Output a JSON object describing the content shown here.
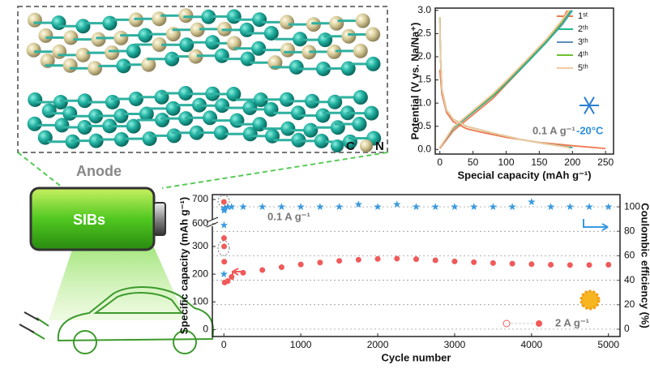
{
  "illustration": {
    "anode": "Anode",
    "battery": "SIBs",
    "atoms": [
      "C",
      "N"
    ]
  },
  "chart_data": [
    {
      "type": "line",
      "x_label": "Special capacity (mAh g⁻¹)",
      "y_label": "Potential (V vs. Na/Na⁺)",
      "annotations": [
        "0.1 A g⁻¹",
        "-20°C"
      ],
      "xlim": [
        -7,
        262
      ],
      "xticks": [
        0,
        50,
        100,
        150,
        200,
        250
      ],
      "ylim": [
        -0.1,
        3.05
      ],
      "yticks": [
        {
          "value": 0,
          "label": "0.0"
        },
        0.5,
        {
          "value": 1,
          "label": "1.0"
        },
        1.5,
        {
          "value": 2,
          "label": "2.0"
        },
        2.5,
        {
          "value": 3,
          "label": "3.0"
        }
      ],
      "series": [
        {
          "name": "1ˢᵗ",
          "color": "#f07850",
          "x": [
            0,
            3,
            10,
            20,
            40,
            60,
            100,
            150,
            200,
            250,
            null,
            0,
            20,
            50,
            80,
            100,
            130,
            160,
            180,
            192
          ],
          "values": [
            1.72,
            1.2,
            0.8,
            0.6,
            0.45,
            0.38,
            0.26,
            0.15,
            0.08,
            0.02,
            null,
            0.02,
            0.4,
            0.75,
            1.1,
            1.4,
            1.85,
            2.3,
            2.65,
            3.0
          ]
        },
        {
          "name": "2ᵗʰ",
          "color": "#20b890",
          "x": [
            0,
            1,
            3,
            10,
            20,
            40,
            80,
            120,
            160,
            200,
            null,
            0,
            20,
            50,
            80,
            100,
            130,
            160,
            185,
            200
          ],
          "values": [
            2.85,
            2.0,
            1.3,
            0.85,
            0.65,
            0.5,
            0.35,
            0.22,
            0.12,
            0.04,
            null,
            0.04,
            0.45,
            0.8,
            1.15,
            1.42,
            1.85,
            2.3,
            2.7,
            3.0
          ]
        },
        {
          "name": "3ᵗʰ",
          "color": "#5a90b8",
          "x": [
            0,
            1,
            3,
            10,
            20,
            40,
            80,
            120,
            160,
            198,
            null,
            0,
            20,
            50,
            80,
            100,
            130,
            160,
            185,
            198
          ],
          "values": [
            2.85,
            2.0,
            1.3,
            0.85,
            0.65,
            0.5,
            0.35,
            0.22,
            0.12,
            0.04,
            null,
            0.04,
            0.46,
            0.82,
            1.17,
            1.44,
            1.88,
            2.33,
            2.72,
            3.0
          ]
        },
        {
          "name": "4ᵗʰ",
          "color": "#70c030",
          "x": [
            0,
            1,
            3,
            10,
            20,
            40,
            80,
            120,
            160,
            196,
            null,
            0,
            20,
            50,
            80,
            100,
            130,
            160,
            183,
            196
          ],
          "values": [
            2.85,
            2.0,
            1.3,
            0.85,
            0.65,
            0.5,
            0.35,
            0.22,
            0.12,
            0.04,
            null,
            0.04,
            0.47,
            0.83,
            1.18,
            1.46,
            1.9,
            2.35,
            2.73,
            3.0
          ]
        },
        {
          "name": "5ᵗʰ",
          "color": "#f5c8a0",
          "x": [
            0,
            1,
            3,
            10,
            20,
            40,
            80,
            120,
            160,
            195,
            null,
            0,
            20,
            50,
            80,
            100,
            130,
            160,
            182,
            195
          ],
          "values": [
            2.85,
            2.0,
            1.3,
            0.85,
            0.65,
            0.5,
            0.35,
            0.22,
            0.12,
            0.04,
            null,
            0.04,
            0.48,
            0.84,
            1.2,
            1.48,
            1.92,
            2.37,
            2.75,
            3.0
          ]
        }
      ]
    },
    {
      "type": "scatter",
      "x_label": "Cycle number",
      "y_label": "Specific capacity (mAh g⁻¹)",
      "y2_label": "Coulombic efficiency (%)",
      "annotations": [
        "0.1 A g⁻¹"
      ],
      "xlim": [
        -150,
        5150
      ],
      "xticks": [
        0,
        1000,
        2000,
        3000,
        4000,
        5000
      ],
      "ylim": [
        -25,
        720
      ],
      "y_break": [
        370,
        620
      ],
      "yticks": [
        0,
        100,
        200,
        300,
        600,
        700
      ],
      "y2lim": [
        -6,
        110
      ],
      "y2ticks": [
        0,
        20,
        40,
        60,
        80,
        100
      ],
      "series": [
        {
          "name": "2 A g⁻¹",
          "color": "#f05a5a",
          "x": [
            1,
            2,
            3,
            5,
            10,
            50,
            100,
            250,
            500,
            750,
            1000,
            1250,
            1500,
            1750,
            2000,
            2250,
            2500,
            2750,
            3000,
            3250,
            3500,
            3750,
            4000,
            4250,
            4500,
            4750,
            5000
          ],
          "values": [
            690,
            330,
            300,
            245,
            170,
            175,
            190,
            205,
            215,
            225,
            235,
            242,
            248,
            252,
            255,
            256,
            254,
            250,
            246,
            243,
            240,
            238,
            236,
            234,
            233,
            233,
            234
          ]
        },
        {
          "color": "#3a9ae0",
          "axis": "y2",
          "x": [
            1,
            2,
            3,
            5,
            10,
            50,
            100,
            250,
            500,
            750,
            1000,
            1250,
            1500,
            1750,
            2000,
            2250,
            2500,
            2750,
            3000,
            3250,
            3500,
            3750,
            4000,
            4250,
            4500,
            4750,
            5000
          ],
          "values": [
            45,
            85,
            97,
            98,
            99,
            100,
            100,
            100,
            100,
            100,
            100,
            100,
            100,
            102,
            100,
            102,
            100,
            100,
            100,
            100,
            100,
            100,
            104,
            100,
            100,
            100,
            100
          ]
        }
      ]
    }
  ]
}
